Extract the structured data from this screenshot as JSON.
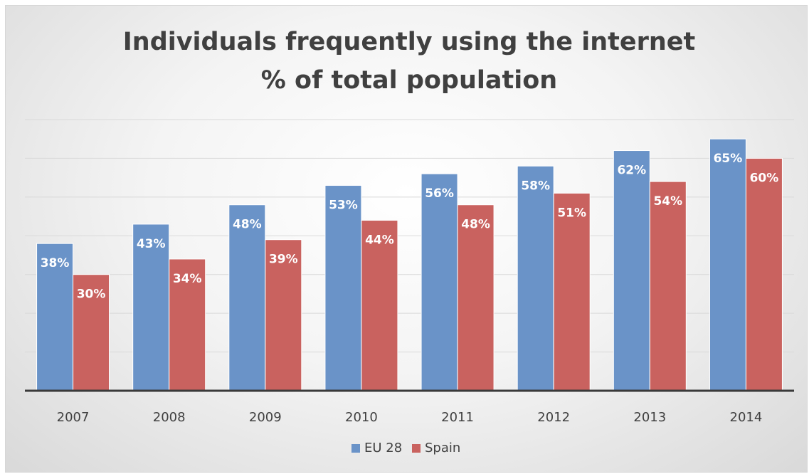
{
  "chart_data": {
    "type": "bar",
    "title": [
      "Individuals frequently using the internet",
      "% of total population"
    ],
    "xlabel": "",
    "ylabel": "",
    "categories": [
      "2007",
      "2008",
      "2009",
      "2010",
      "2011",
      "2012",
      "2013",
      "2014"
    ],
    "series": [
      {
        "name": "EU 28",
        "color": "#6a93c8",
        "values": [
          38,
          43,
          48,
          53,
          56,
          58,
          62,
          65
        ],
        "labels": [
          "38%",
          "43%",
          "48%",
          "53%",
          "56%",
          "58%",
          "62%",
          "65%"
        ]
      },
      {
        "name": "Spain",
        "color": "#c9625f",
        "values": [
          30,
          34,
          39,
          44,
          48,
          51,
          54,
          60
        ],
        "labels": [
          "30%",
          "34%",
          "39%",
          "44%",
          "48%",
          "51%",
          "54%",
          "60%"
        ]
      }
    ],
    "ylim": [
      0,
      70
    ],
    "grid": true,
    "legend": "bottom"
  }
}
